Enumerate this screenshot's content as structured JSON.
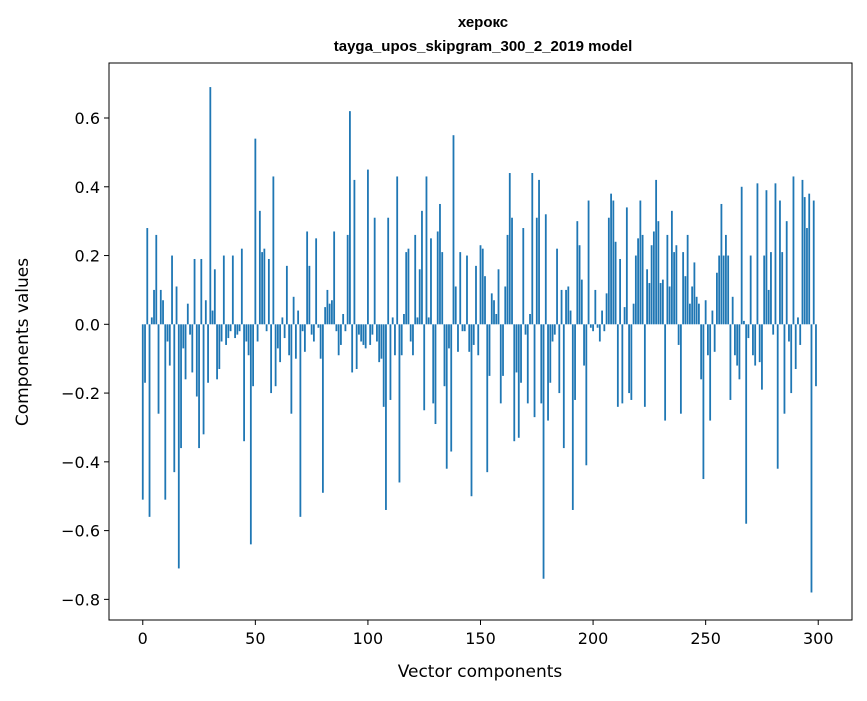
{
  "chart_data": {
    "type": "bar",
    "title_line1": "херокс",
    "title_line2": "tayga_upos_skipgram_300_2_2019 model",
    "xlabel": "Vector components",
    "ylabel": "Components values",
    "xlim": [
      -15,
      315
    ],
    "ylim": [
      -0.86,
      0.76
    ],
    "xticks": [
      0,
      50,
      100,
      150,
      200,
      250,
      300
    ],
    "xtick_labels": [
      "0",
      "50",
      "100",
      "150",
      "200",
      "250",
      "300"
    ],
    "yticks": [
      -0.8,
      -0.6,
      -0.4,
      -0.2,
      0.0,
      0.2,
      0.4,
      0.6
    ],
    "ytick_labels": [
      "−0.8",
      "−0.6",
      "−0.4",
      "−0.2",
      "0.0",
      "0.2",
      "0.4",
      "0.6"
    ],
    "grid": false,
    "bar_color": "#1f77b4",
    "x": "0..299",
    "values": [
      -0.51,
      -0.17,
      0.28,
      -0.56,
      0.02,
      0.1,
      0.26,
      -0.26,
      0.1,
      0.07,
      -0.51,
      -0.05,
      -0.12,
      0.2,
      -0.43,
      0.11,
      -0.71,
      -0.36,
      -0.07,
      -0.16,
      0.06,
      -0.03,
      -0.14,
      0.19,
      -0.21,
      -0.36,
      0.19,
      -0.32,
      0.07,
      -0.17,
      0.69,
      0.04,
      0.16,
      -0.16,
      -0.13,
      -0.05,
      0.2,
      -0.06,
      -0.04,
      -0.02,
      0.2,
      -0.04,
      -0.03,
      -0.02,
      0.22,
      -0.34,
      -0.05,
      -0.09,
      -0.64,
      -0.18,
      0.54,
      -0.05,
      0.33,
      0.21,
      0.22,
      -0.02,
      0.19,
      -0.2,
      0.43,
      -0.18,
      -0.07,
      -0.11,
      0.02,
      -0.04,
      0.17,
      -0.09,
      -0.26,
      0.08,
      -0.1,
      0.04,
      -0.56,
      -0.02,
      -0.08,
      0.27,
      0.17,
      -0.03,
      -0.05,
      0.25,
      -0.01,
      -0.1,
      -0.49,
      0.05,
      0.1,
      0.06,
      0.07,
      0.27,
      -0.02,
      -0.09,
      -0.06,
      0.03,
      -0.02,
      0.26,
      0.62,
      -0.14,
      0.42,
      -0.13,
      -0.03,
      -0.05,
      -0.06,
      -0.07,
      0.45,
      -0.06,
      -0.03,
      0.31,
      -0.05,
      -0.11,
      -0.1,
      -0.24,
      -0.54,
      0.31,
      -0.22,
      0.02,
      -0.09,
      0.43,
      -0.46,
      -0.09,
      0.03,
      0.21,
      0.22,
      -0.05,
      -0.09,
      0.26,
      0.02,
      0.16,
      0.33,
      -0.25,
      0.43,
      0.02,
      0.25,
      -0.23,
      -0.29,
      0.27,
      0.35,
      0.21,
      -0.18,
      -0.42,
      -0.07,
      -0.37,
      0.55,
      0.11,
      -0.08,
      0.21,
      -0.02,
      -0.02,
      0.2,
      -0.08,
      -0.5,
      -0.06,
      0.17,
      -0.09,
      0.23,
      0.22,
      0.14,
      -0.43,
      -0.15,
      0.09,
      0.07,
      0.03,
      0.16,
      -0.23,
      -0.15,
      0.11,
      0.26,
      0.44,
      0.31,
      -0.34,
      -0.14,
      -0.33,
      -0.17,
      0.28,
      -0.03,
      -0.23,
      0.03,
      0.44,
      -0.27,
      0.31,
      0.42,
      -0.23,
      -0.74,
      0.32,
      -0.28,
      -0.17,
      -0.05,
      -0.03,
      0.22,
      -0.2,
      0.1,
      -0.36,
      0.1,
      0.11,
      0.04,
      -0.54,
      -0.22,
      0.3,
      0.23,
      0.13,
      -0.12,
      -0.41,
      0.36,
      -0.01,
      -0.02,
      0.1,
      -0.01,
      -0.05,
      0.04,
      -0.02,
      0.09,
      0.31,
      0.38,
      0.36,
      0.24,
      -0.24,
      0.19,
      -0.23,
      0.05,
      0.34,
      -0.2,
      -0.22,
      0.06,
      0.2,
      0.25,
      0.36,
      0.26,
      -0.24,
      0.16,
      0.12,
      0.23,
      0.27,
      0.42,
      0.3,
      0.12,
      0.13,
      -0.28,
      0.26,
      0.11,
      0.33,
      0.21,
      0.23,
      -0.06,
      -0.26,
      0.21,
      0.14,
      0.26,
      0.06,
      0.11,
      0.18,
      0.08,
      0.06,
      -0.16,
      -0.45,
      0.07,
      -0.09,
      -0.28,
      0.04,
      -0.08,
      0.15,
      0.2,
      0.35,
      0.2,
      0.26,
      0.2,
      -0.22,
      0.08,
      -0.09,
      -0.12,
      -0.16,
      0.4,
      0.01,
      -0.58,
      -0.04,
      0.2,
      -0.09,
      -0.12,
      0.41,
      -0.11,
      -0.19,
      0.2,
      0.39,
      0.1,
      0.21,
      -0.03,
      0.41,
      -0.42,
      0.36,
      0.21,
      -0.26,
      0.3,
      -0.05,
      -0.2,
      0.43,
      -0.13,
      0.02,
      -0.06,
      0.42,
      0.37,
      0.28,
      0.38,
      -0.78,
      0.36,
      -0.18
    ]
  }
}
